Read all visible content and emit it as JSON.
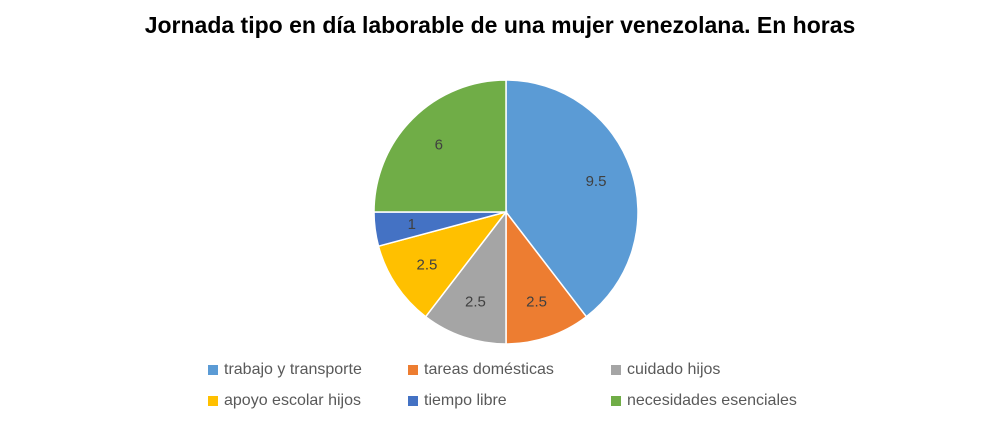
{
  "chart_data": {
    "type": "pie",
    "title": "Jornada tipo en día laborable de una mujer venezolana. En horas",
    "categories": [
      "trabajo y transporte",
      "tareas domésticas",
      "cuidado hijos",
      "apoyo escolar hijos",
      "tiempo libre",
      "necesidades esenciales"
    ],
    "values": [
      9.5,
      2.5,
      2.5,
      2.5,
      1,
      6
    ],
    "value_labels": [
      "9.5",
      "2.5",
      "2.5",
      "2.5",
      "1",
      "6"
    ],
    "colors": [
      "#5B9BD5",
      "#ED7D31",
      "#A5A5A5",
      "#FFC000",
      "#4472C4",
      "#70AD47"
    ],
    "legend_position": "bottom"
  }
}
